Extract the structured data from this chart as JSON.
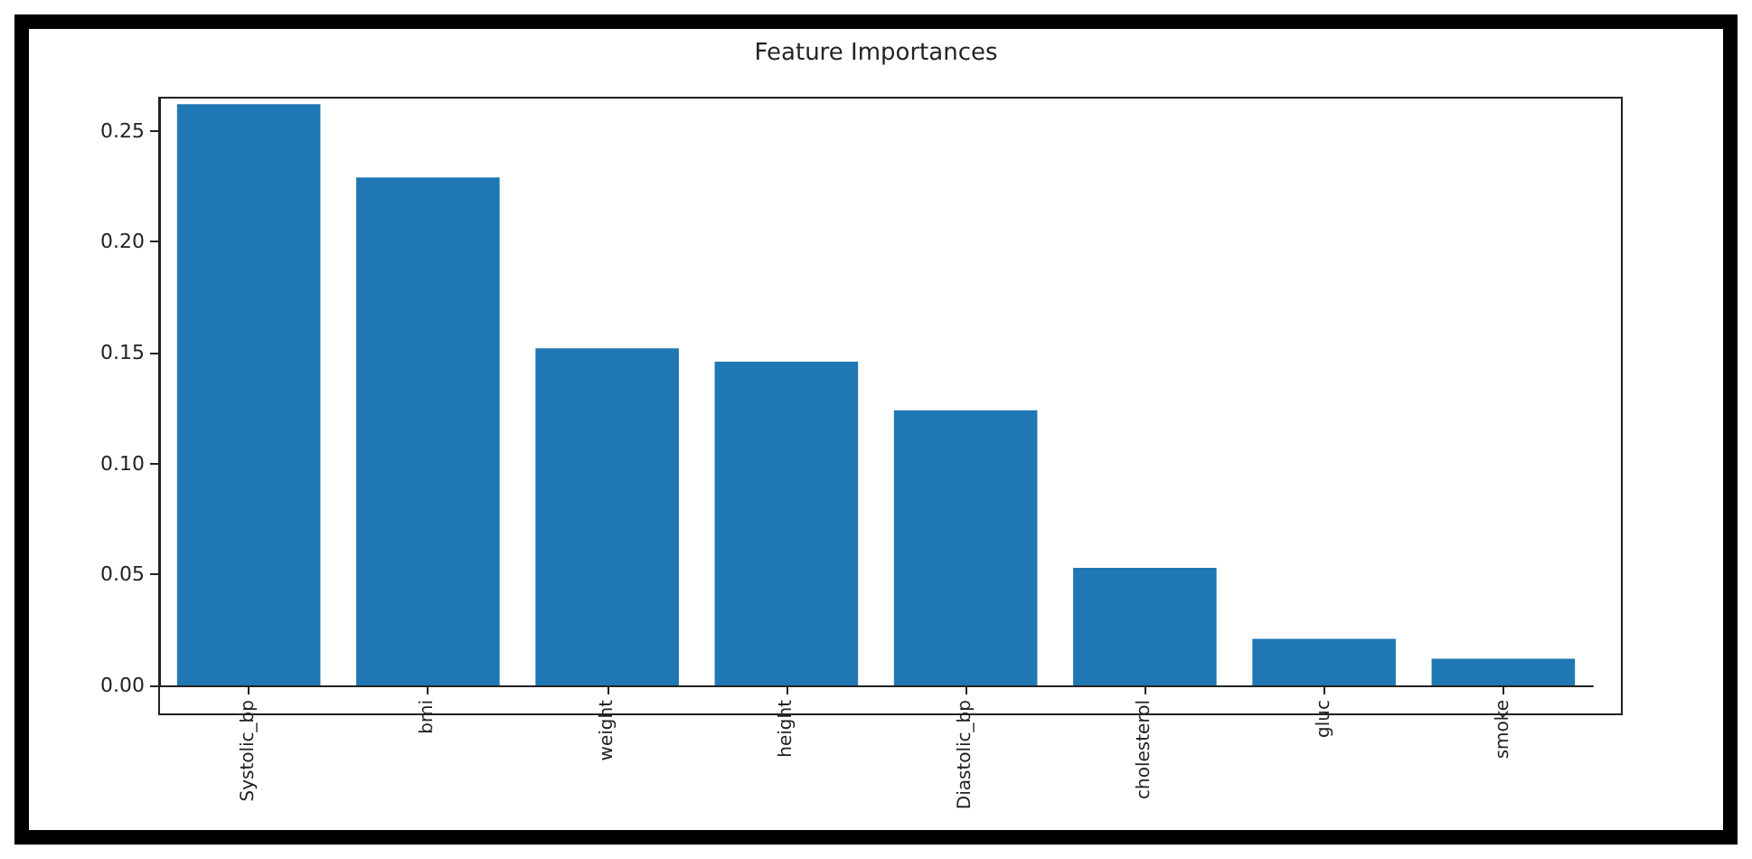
{
  "chart_data": {
    "type": "bar",
    "title": "Feature Importances",
    "categories": [
      "Systolic_bp",
      "bmi",
      "weight",
      "height",
      "Diastolic_bp",
      "cholesterol",
      "gluc",
      "smoke"
    ],
    "values": [
      0.262,
      0.229,
      0.152,
      0.146,
      0.124,
      0.053,
      0.021,
      0.012
    ],
    "color": "#1f77b4",
    "ylim": [
      0,
      0.265
    ],
    "yticks": [
      {
        "value": 0,
        "label": "0.00"
      },
      {
        "value": 0.05,
        "label": "0.05"
      },
      {
        "value": 0.1,
        "label": "0.10"
      },
      {
        "value": 0.15,
        "label": "0.15"
      },
      {
        "value": 0.2,
        "label": "0.20"
      },
      {
        "value": 0.25,
        "label": "0.25"
      }
    ],
    "grid": false
  }
}
